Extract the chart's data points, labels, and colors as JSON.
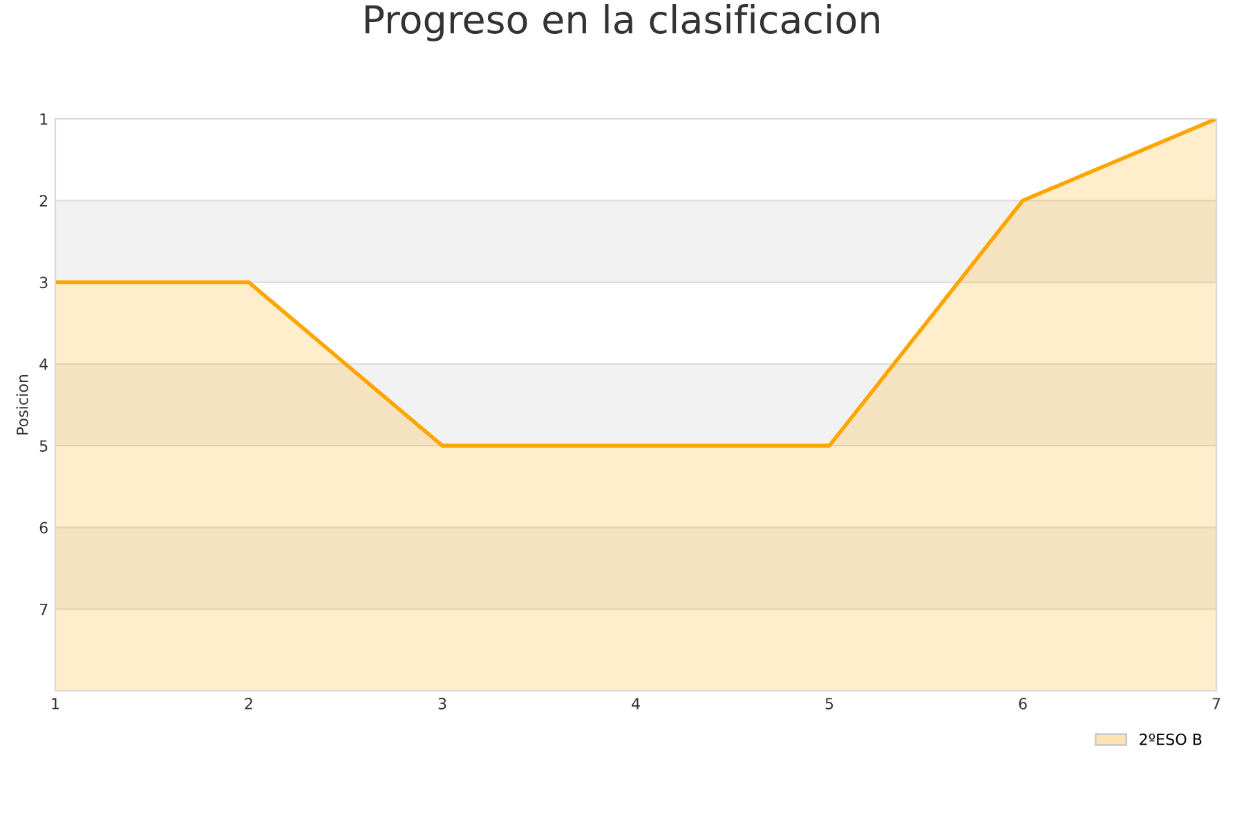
{
  "chart_data": {
    "type": "area",
    "title": "Progreso en la clasificacion",
    "ylabel": "Posicion",
    "x": [
      1,
      2,
      3,
      4,
      5,
      6,
      7
    ],
    "series": [
      {
        "name": "2ºESO B",
        "color": "#ffa500",
        "values": [
          3,
          3,
          5,
          5,
          5,
          2,
          1
        ]
      }
    ],
    "xlim": [
      1,
      7
    ],
    "xticks": [
      1,
      2,
      3,
      4,
      5,
      6,
      7
    ],
    "ylim": [
      8,
      1
    ],
    "yticks": [
      1,
      2,
      3,
      4,
      5,
      6,
      7
    ],
    "bands": [
      {
        "axis": "y",
        "from": 2,
        "to": 3,
        "color": "#f2f2f2"
      },
      {
        "axis": "y",
        "from": 4,
        "to": 5,
        "color": "#f2f2f2"
      },
      {
        "axis": "y",
        "from": 6,
        "to": 7,
        "color": "#f2f2f2"
      }
    ],
    "grid": "y",
    "legend": "bottom right"
  }
}
